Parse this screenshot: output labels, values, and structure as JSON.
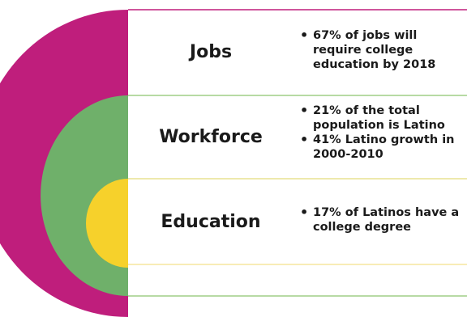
{
  "colors": {
    "outer": "#bf1e7c",
    "middle": "#6fb06a",
    "inner": "#f6d12b",
    "panel_border_purple": "#bf1e7c",
    "panel_border_green": "#8cc46e",
    "panel_border_yellow": "#f3e08a"
  },
  "rows": [
    {
      "label": "Jobs",
      "bullets": [
        "67% of jobs will require college education by 2018"
      ]
    },
    {
      "label": "Workforce",
      "bullets": [
        "21% of the total population is Latino",
        "41% Latino growth in 2000-2010"
      ]
    },
    {
      "label": "Education",
      "bullets": [
        "17% of Latinos have a college degree"
      ]
    }
  ]
}
